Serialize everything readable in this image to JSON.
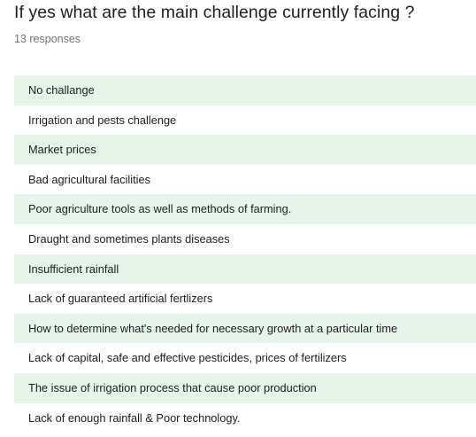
{
  "question": {
    "title": "If yes what are the main challenge currently facing ?",
    "response_count": "13 responses"
  },
  "answers": [
    "No challange",
    "Irrigation and pests challenge",
    "Market prices",
    "Bad agricultural facilities",
    "Poor agriculture tools as well as methods of farming.",
    "Draught and sometimes plants diseases",
    "Insufficient rainfall",
    "Lack of guaranteed artificial fertlizers",
    "How to determine what's needed for necessary growth at a particular time",
    "Lack of capital, safe and effective pesticides, prices of fertilizers",
    "The issue of irrigation process that cause poor production",
    "Lack of enough rainfall & Poor technology."
  ],
  "colors": {
    "row_shade": "#e6f4ea",
    "text": "#202124",
    "secondary_text": "#70757a"
  }
}
